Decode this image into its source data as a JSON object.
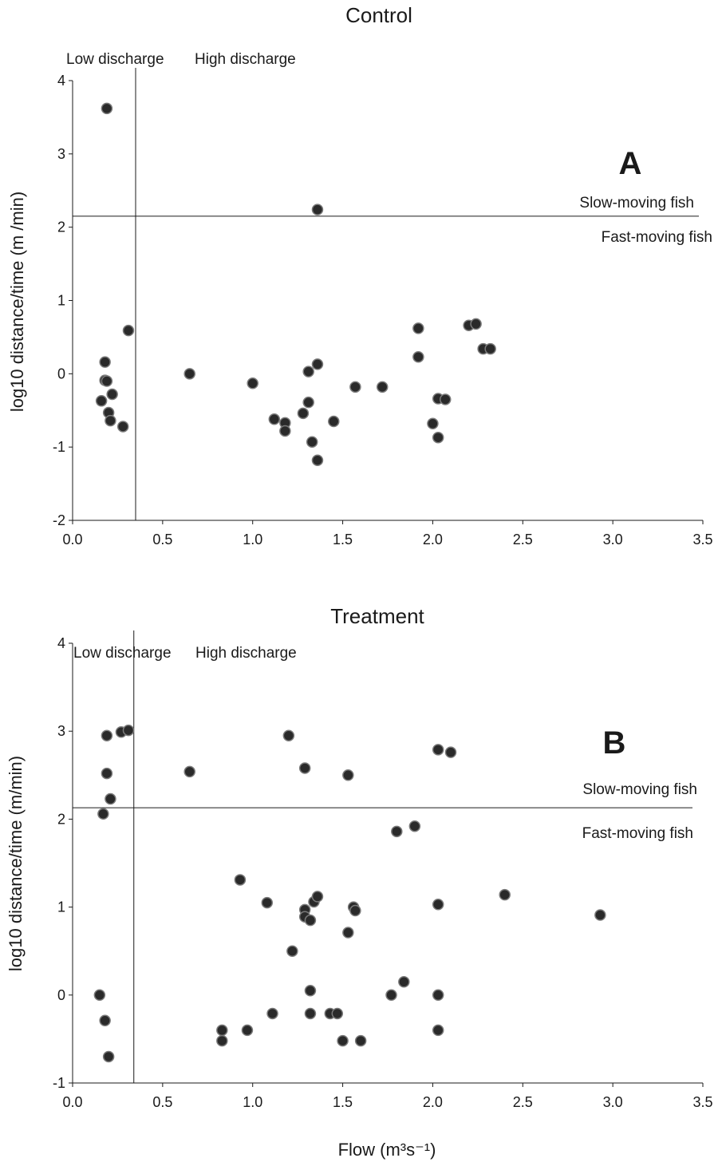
{
  "chart_data": [
    {
      "type": "scatter",
      "title": "Control",
      "panel_letter": "A",
      "xlabel": "",
      "ylabel": "log10 distance/time (m /min)",
      "xlim": [
        0,
        3.5
      ],
      "ylim": [
        -2,
        4
      ],
      "x_ticks": [
        "0.0",
        "0.5",
        "1.0",
        "1.5",
        "2.0",
        "2.5",
        "3.0",
        "3.5"
      ],
      "y_ticks": [
        "-2",
        "-1",
        "0",
        "1",
        "2",
        "3",
        "4"
      ],
      "grid": false,
      "vline_x": 0.35,
      "hline_y": 2.15,
      "annotations": {
        "left_region": "Low discharge",
        "right_region": "High discharge",
        "above_line": "Slow-moving fish",
        "below_line": "Fast-moving fish"
      },
      "points": [
        {
          "x": 0.19,
          "y": 3.62
        },
        {
          "x": 1.36,
          "y": 2.24
        },
        {
          "x": 0.31,
          "y": 0.59
        },
        {
          "x": 0.18,
          "y": 0.16
        },
        {
          "x": 0.18,
          "y": -0.09
        },
        {
          "x": 0.19,
          "y": -0.1
        },
        {
          "x": 0.22,
          "y": -0.28
        },
        {
          "x": 0.16,
          "y": -0.37
        },
        {
          "x": 0.2,
          "y": -0.53
        },
        {
          "x": 0.21,
          "y": -0.64
        },
        {
          "x": 0.28,
          "y": -0.72
        },
        {
          "x": 0.65,
          "y": 0.0
        },
        {
          "x": 1.0,
          "y": -0.13
        },
        {
          "x": 1.12,
          "y": -0.62
        },
        {
          "x": 1.18,
          "y": -0.67
        },
        {
          "x": 1.18,
          "y": -0.78
        },
        {
          "x": 1.28,
          "y": -0.54
        },
        {
          "x": 1.31,
          "y": 0.03
        },
        {
          "x": 1.31,
          "y": -0.39
        },
        {
          "x": 1.33,
          "y": -0.93
        },
        {
          "x": 1.36,
          "y": 0.13
        },
        {
          "x": 1.36,
          "y": -1.18
        },
        {
          "x": 1.45,
          "y": -0.65
        },
        {
          "x": 1.57,
          "y": -0.18
        },
        {
          "x": 1.72,
          "y": -0.18
        },
        {
          "x": 1.92,
          "y": 0.62
        },
        {
          "x": 1.92,
          "y": 0.23
        },
        {
          "x": 2.0,
          "y": -0.68
        },
        {
          "x": 2.03,
          "y": -0.34
        },
        {
          "x": 2.03,
          "y": -0.87
        },
        {
          "x": 2.07,
          "y": -0.35
        },
        {
          "x": 2.2,
          "y": 0.66
        },
        {
          "x": 2.24,
          "y": 0.68
        },
        {
          "x": 2.28,
          "y": 0.34
        },
        {
          "x": 2.32,
          "y": 0.34
        }
      ]
    },
    {
      "type": "scatter",
      "title": "Treatment",
      "panel_letter": "B",
      "xlabel": "Flow (m³s⁻¹)",
      "ylabel": "log10 distance/time (m/min)",
      "xlim": [
        0,
        3.5
      ],
      "ylim": [
        -1,
        4
      ],
      "x_ticks": [
        "0.0",
        "0.5",
        "1.0",
        "1.5",
        "2.0",
        "2.5",
        "3.0",
        "3.5"
      ],
      "y_ticks": [
        "-1",
        "0",
        "1",
        "2",
        "3",
        "4"
      ],
      "grid": false,
      "vline_x": 0.34,
      "hline_y": 2.13,
      "annotations": {
        "left_region": "Low discharge",
        "right_region": "High discharge",
        "above_line": "Slow-moving fish",
        "below_line": "Fast-moving fish"
      },
      "points": [
        {
          "x": 0.19,
          "y": 2.95
        },
        {
          "x": 0.27,
          "y": 2.99
        },
        {
          "x": 0.31,
          "y": 3.01
        },
        {
          "x": 0.19,
          "y": 2.52
        },
        {
          "x": 0.21,
          "y": 2.23
        },
        {
          "x": 0.17,
          "y": 2.06
        },
        {
          "x": 0.65,
          "y": 2.54
        },
        {
          "x": 1.2,
          "y": 2.95
        },
        {
          "x": 1.29,
          "y": 2.58
        },
        {
          "x": 1.53,
          "y": 2.5
        },
        {
          "x": 2.03,
          "y": 2.79
        },
        {
          "x": 2.1,
          "y": 2.76
        },
        {
          "x": 1.8,
          "y": 1.86
        },
        {
          "x": 1.9,
          "y": 1.92
        },
        {
          "x": 0.93,
          "y": 1.31
        },
        {
          "x": 1.08,
          "y": 1.05
        },
        {
          "x": 1.29,
          "y": 0.97
        },
        {
          "x": 1.29,
          "y": 0.89
        },
        {
          "x": 1.32,
          "y": 0.85
        },
        {
          "x": 1.34,
          "y": 1.06
        },
        {
          "x": 1.36,
          "y": 1.12
        },
        {
          "x": 1.56,
          "y": 1.0
        },
        {
          "x": 1.57,
          "y": 0.96
        },
        {
          "x": 1.53,
          "y": 0.71
        },
        {
          "x": 2.03,
          "y": 1.03
        },
        {
          "x": 2.4,
          "y": 1.14
        },
        {
          "x": 2.93,
          "y": 0.91
        },
        {
          "x": 1.22,
          "y": 0.5
        },
        {
          "x": 0.15,
          "y": 0.0
        },
        {
          "x": 0.18,
          "y": -0.29
        },
        {
          "x": 0.2,
          "y": -0.7
        },
        {
          "x": 0.83,
          "y": -0.4
        },
        {
          "x": 0.83,
          "y": -0.52
        },
        {
          "x": 0.97,
          "y": -0.4
        },
        {
          "x": 1.11,
          "y": -0.21
        },
        {
          "x": 1.32,
          "y": 0.05
        },
        {
          "x": 1.32,
          "y": -0.21
        },
        {
          "x": 1.43,
          "y": -0.21
        },
        {
          "x": 1.47,
          "y": -0.21
        },
        {
          "x": 1.5,
          "y": -0.52
        },
        {
          "x": 1.6,
          "y": -0.52
        },
        {
          "x": 1.77,
          "y": 0.0
        },
        {
          "x": 1.84,
          "y": 0.15
        },
        {
          "x": 2.03,
          "y": 0.0
        },
        {
          "x": 2.03,
          "y": -0.4
        }
      ]
    }
  ]
}
